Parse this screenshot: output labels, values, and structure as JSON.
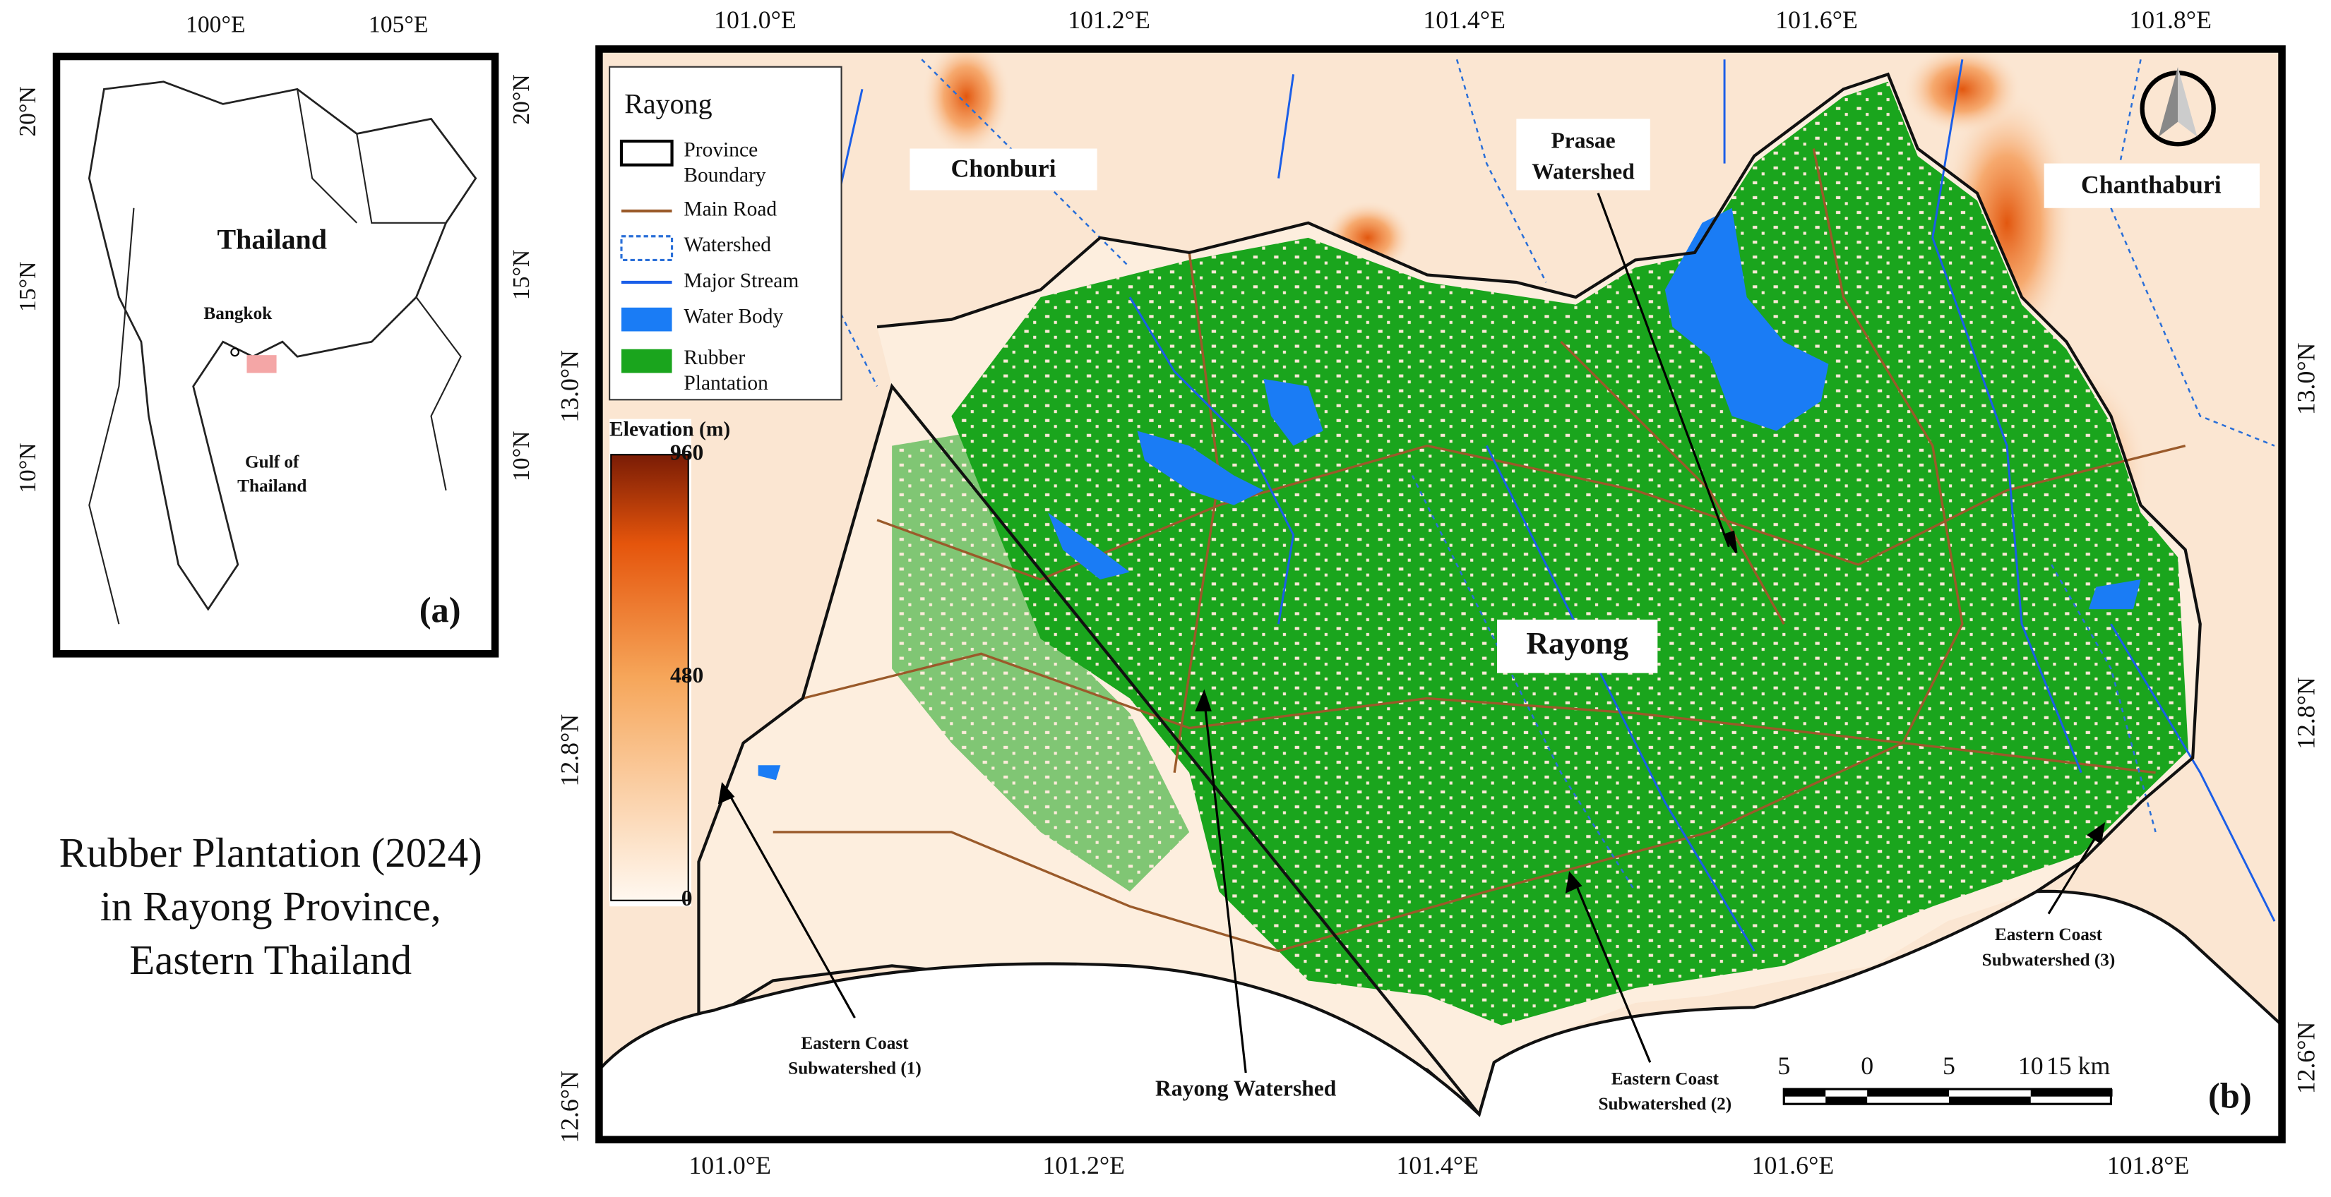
{
  "title_lines": [
    "Rubber Plantation (2024)",
    "in Rayong Province,",
    "Eastern Thailand"
  ],
  "panel_a": {
    "label": "(a)",
    "lon_ticks": [
      "100°E",
      "105°E"
    ],
    "lat_ticks": [
      "20°N",
      "15°N",
      "10°N"
    ],
    "places": {
      "country": "Thailand",
      "city": "Bangkok",
      "gulf_lines": [
        "Gulf of",
        "Thailand"
      ]
    }
  },
  "panel_b": {
    "label": "(b)",
    "top_ticks": [
      "101.0°E",
      "101.2°E",
      "101.4°E",
      "101.6°E",
      "101.8°E"
    ],
    "bottom_ticks": [
      "101.0°E",
      "101.2°E",
      "101.4°E",
      "101.6°E",
      "101.8°E"
    ],
    "left_ticks": [
      "13.0°N",
      "12.8°N",
      "12.6°N"
    ],
    "right_ticks": [
      "13.0°N",
      "12.8°N",
      "12.6°N"
    ],
    "legend": {
      "title": "Rayong",
      "items": [
        {
          "label_lines": [
            "Province",
            "Boundary"
          ]
        },
        {
          "label_lines": [
            "Main Road"
          ]
        },
        {
          "label_lines": [
            "Watershed"
          ]
        },
        {
          "label_lines": [
            "Major Stream"
          ]
        },
        {
          "label_lines": [
            "Water Body"
          ]
        },
        {
          "label_lines": [
            "Rubber",
            "Plantation"
          ]
        }
      ]
    },
    "colorbar": {
      "title": "Elevation (m)",
      "range": [
        0,
        960
      ],
      "ticks": [
        0,
        480,
        960
      ]
    },
    "places": {
      "west": "Chonburi",
      "east": "Chanthaburi",
      "center": "Rayong",
      "prasae_lines": [
        "Prasae",
        "Watershed"
      ],
      "rayong_ws": "Rayong Watershed",
      "coast1_lines": [
        "Eastern Coast",
        "Subwatershed (1)"
      ],
      "coast2_lines": [
        "Eastern Coast",
        "Subwatershed (2)"
      ],
      "coast3_lines": [
        "Eastern Coast",
        "Subwatershed (3)"
      ]
    },
    "scale_bar": [
      "5",
      "0",
      "5",
      "10",
      "15 km"
    ]
  }
}
